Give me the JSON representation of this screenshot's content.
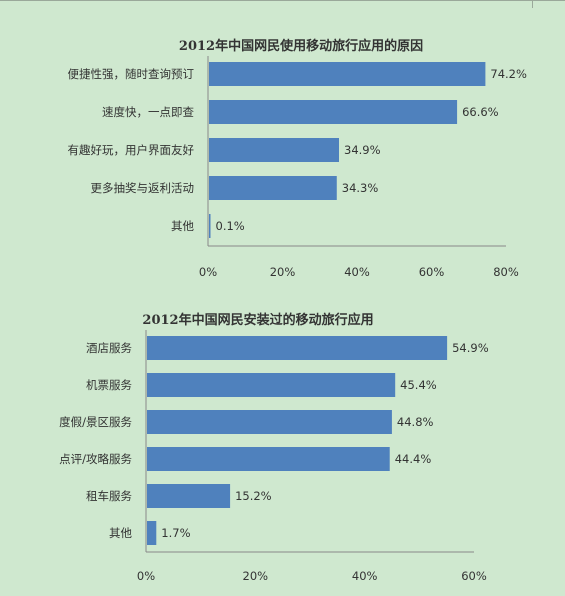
{
  "chart_data": [
    {
      "type": "bar",
      "orientation": "horizontal",
      "title": "2012年中国网民使用移动旅行应用的原因",
      "categories": [
        "便捷性强，随时查询预订",
        "速度快，一点即查",
        "有趣好玩，用户界面友好",
        "更多抽奖与返利活动",
        "其他"
      ],
      "values": [
        74.2,
        66.6,
        34.9,
        34.3,
        0.1
      ],
      "value_labels": [
        "74.2%",
        "66.6%",
        "34.9%",
        "34.3%",
        "0.1%"
      ],
      "xlim": [
        0,
        80
      ],
      "ticks": [
        "0%",
        "20%",
        "40%",
        "60%",
        "80%"
      ],
      "bar_color": "#4f81bd",
      "grid": false
    },
    {
      "type": "bar",
      "orientation": "horizontal",
      "title": "2012年中国网民安装过的移动旅行应用",
      "categories": [
        "酒店服务",
        "机票服务",
        "度假/景区服务",
        "点评/攻略服务",
        "租车服务",
        "其他"
      ],
      "values": [
        54.9,
        45.4,
        44.8,
        44.4,
        15.2,
        1.7
      ],
      "value_labels": [
        "54.9%",
        "45.4%",
        "44.8%",
        "44.4%",
        "15.2%",
        "1.7%"
      ],
      "xlim": [
        0,
        60
      ],
      "ticks": [
        "0%",
        "20%",
        "40%",
        "60%"
      ],
      "bar_color": "#4f81bd",
      "grid": false
    }
  ],
  "colors": {
    "background": "#cfe8cf",
    "bar": "#4f81bd",
    "axis": "#888888",
    "text": "#333333"
  }
}
